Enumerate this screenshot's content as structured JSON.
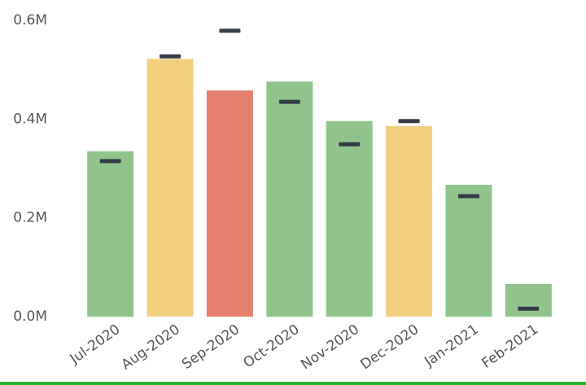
{
  "chart_data": {
    "type": "bar",
    "categories": [
      "Jul-2020",
      "Aug-2020",
      "Sep-2020",
      "Oct-2020",
      "Nov-2020",
      "Dec-2020",
      "Jan-2021",
      "Feb-2021"
    ],
    "values": [
      335000,
      522000,
      458000,
      476000,
      396000,
      386000,
      267000,
      66000
    ],
    "colors": [
      "#8fc58b",
      "#f2cf7f",
      "#e5806d",
      "#8fc58b",
      "#8fc58b",
      "#f2cf7f",
      "#8fc58b",
      "#8fc58b"
    ],
    "target_values": [
      315000,
      527000,
      579000,
      435000,
      349000,
      396000,
      244000,
      16000
    ],
    "target_color": "#343c48",
    "ylim": [
      0,
      600000
    ],
    "yticks": [
      {
        "value": 0,
        "label": "0.0M"
      },
      {
        "value": 200000,
        "label": "0.2M"
      },
      {
        "value": 400000,
        "label": "0.4M"
      },
      {
        "value": 600000,
        "label": "0.6M"
      }
    ]
  }
}
